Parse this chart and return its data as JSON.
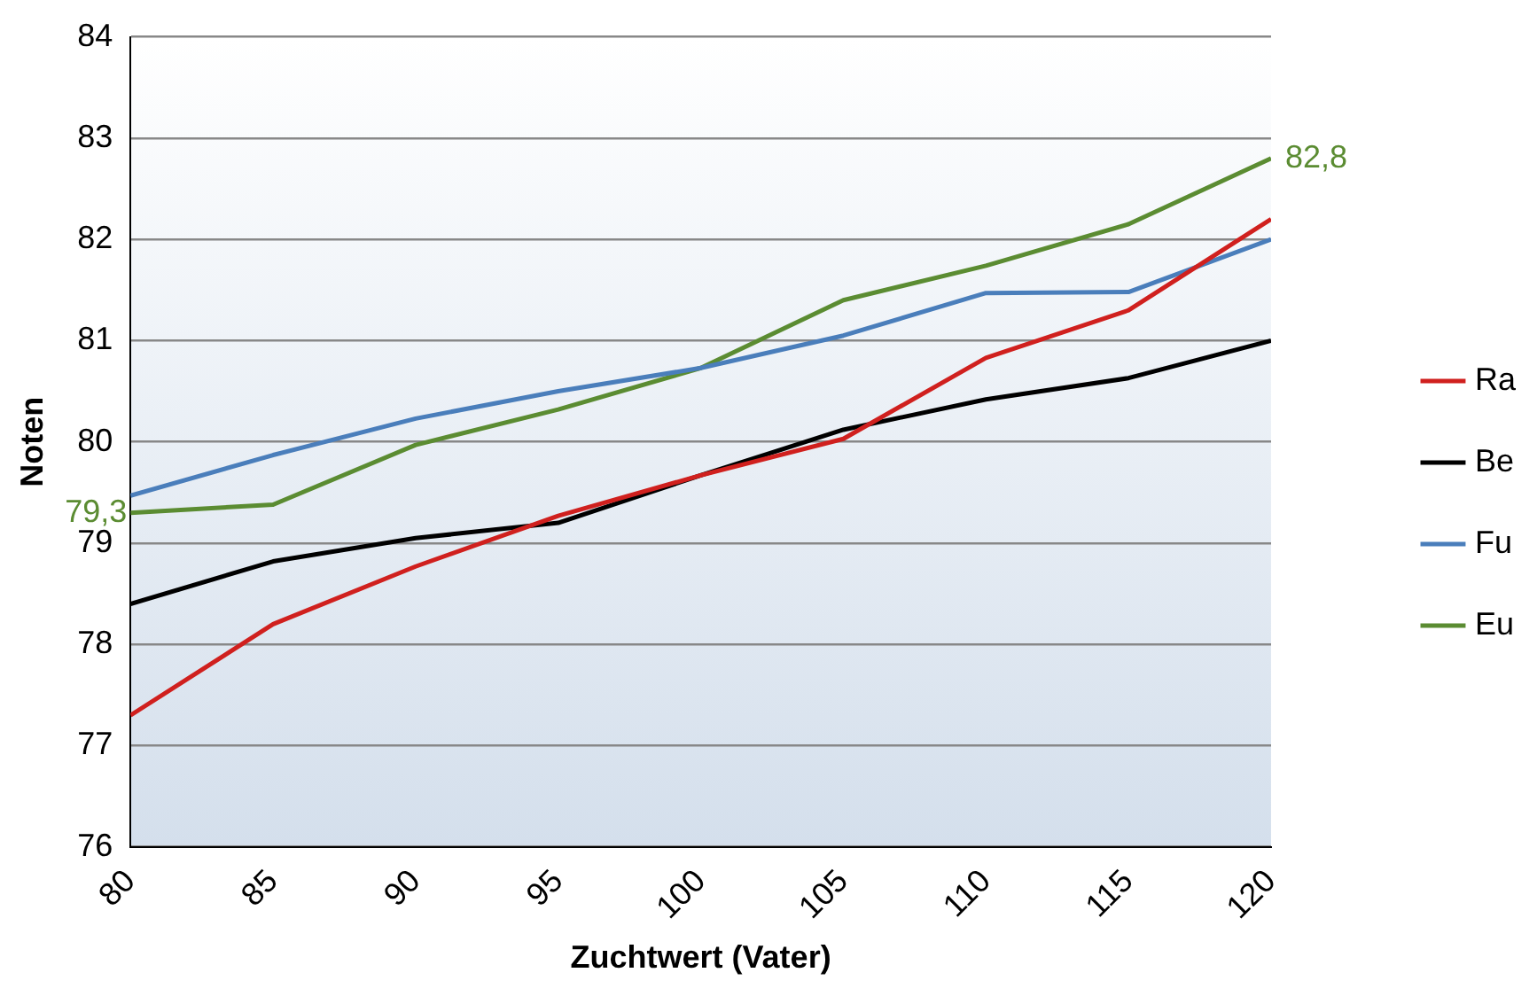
{
  "chart_data": {
    "type": "line",
    "xlabel": "Zuchtwert (Vater)",
    "ylabel": "Noten",
    "x": [
      80,
      85,
      90,
      95,
      100,
      105,
      110,
      115,
      120
    ],
    "xlim": [
      80,
      120
    ],
    "xticks": [
      80,
      85,
      90,
      95,
      100,
      105,
      110,
      115,
      120
    ],
    "ylim": [
      76,
      84
    ],
    "yticks": [
      76,
      77,
      78,
      79,
      80,
      81,
      82,
      83,
      84
    ],
    "grid": "y",
    "legend": "right",
    "marker": "none",
    "line_style": "solid",
    "series": [
      {
        "name": "Ra",
        "color": "#d0201e",
        "values": [
          77.3,
          78.2,
          78.77,
          79.27,
          79.67,
          80.03,
          80.83,
          81.3,
          82.2
        ]
      },
      {
        "name": "Be",
        "color": "#000000",
        "values": [
          78.4,
          78.82,
          79.05,
          79.2,
          79.67,
          80.12,
          80.42,
          80.63,
          81.0
        ]
      },
      {
        "name": "Fu",
        "color": "#4a7ebb",
        "values": [
          79.47,
          79.87,
          80.23,
          80.5,
          80.73,
          81.05,
          81.47,
          81.48,
          82.0
        ]
      },
      {
        "name": "Eu",
        "color": "#5b8c32",
        "values": [
          79.3,
          79.38,
          79.97,
          80.32,
          80.73,
          81.4,
          81.74,
          82.15,
          82.8
        ]
      }
    ],
    "annotations": [
      {
        "text": "79,3",
        "x": 80,
        "y": 79.3
      },
      {
        "text": "82,8",
        "x": 120,
        "y": 82.8
      }
    ]
  }
}
